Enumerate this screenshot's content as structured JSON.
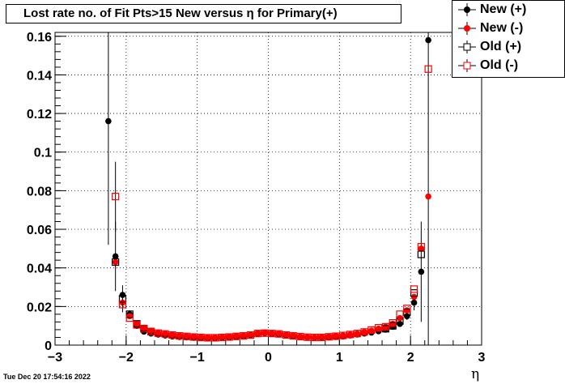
{
  "title": "Lost rate no. of Fit Pts>15 New versus  η for Primary(+)",
  "footer": "Tue Dec 20 17:54:16 2022",
  "chart_data": {
    "type": "scatter",
    "xlabel": "η",
    "ylabel": "",
    "xlim": [
      -3,
      3
    ],
    "ylim": [
      0,
      0.162
    ],
    "grid": true,
    "legend_placement": "top-right",
    "x_ticks": [
      "−3",
      "−2",
      "−1",
      "0",
      "1",
      "2",
      "3"
    ],
    "y_ticks": [
      "0",
      "0.02",
      "0.04",
      "0.06",
      "0.08",
      "0.1",
      "0.12",
      "0.14",
      "0.16"
    ],
    "series": [
      {
        "name": "New (+)",
        "marker": "filled-circle",
        "color": "#000000",
        "points": [
          {
            "x": -2.25,
            "y": 0.116,
            "err": 0.064
          },
          {
            "x": -2.15,
            "y": 0.046,
            "err": 0.018
          },
          {
            "x": -2.05,
            "y": 0.026,
            "err": 0.005
          },
          {
            "x": -1.95,
            "y": 0.016,
            "err": 0.002
          },
          {
            "x": -1.85,
            "y": 0.01
          },
          {
            "x": -1.75,
            "y": 0.007
          },
          {
            "x": -1.65,
            "y": 0.006
          },
          {
            "x": -1.55,
            "y": 0.0055
          },
          {
            "x": -1.45,
            "y": 0.005
          },
          {
            "x": -1.35,
            "y": 0.0045
          },
          {
            "x": -1.25,
            "y": 0.0042
          },
          {
            "x": -1.15,
            "y": 0.004
          },
          {
            "x": -1.05,
            "y": 0.0038
          },
          {
            "x": -0.95,
            "y": 0.0036
          },
          {
            "x": -0.85,
            "y": 0.0035
          },
          {
            "x": -0.75,
            "y": 0.0036
          },
          {
            "x": -0.65,
            "y": 0.0038
          },
          {
            "x": -0.55,
            "y": 0.004
          },
          {
            "x": -0.45,
            "y": 0.0042
          },
          {
            "x": -0.35,
            "y": 0.0045
          },
          {
            "x": -0.25,
            "y": 0.005
          },
          {
            "x": -0.15,
            "y": 0.0058
          },
          {
            "x": -0.05,
            "y": 0.0062
          },
          {
            "x": 0.05,
            "y": 0.0058
          },
          {
            "x": 0.15,
            "y": 0.0055
          },
          {
            "x": 0.25,
            "y": 0.005
          },
          {
            "x": 0.35,
            "y": 0.0045
          },
          {
            "x": 0.45,
            "y": 0.0042
          },
          {
            "x": 0.55,
            "y": 0.004
          },
          {
            "x": 0.65,
            "y": 0.0038
          },
          {
            "x": 0.75,
            "y": 0.0038
          },
          {
            "x": 0.85,
            "y": 0.004
          },
          {
            "x": 0.95,
            "y": 0.0042
          },
          {
            "x": 1.05,
            "y": 0.0045
          },
          {
            "x": 1.15,
            "y": 0.005
          },
          {
            "x": 1.25,
            "y": 0.0055
          },
          {
            "x": 1.35,
            "y": 0.006
          },
          {
            "x": 1.45,
            "y": 0.0065
          },
          {
            "x": 1.55,
            "y": 0.0072
          },
          {
            "x": 1.65,
            "y": 0.008
          },
          {
            "x": 1.75,
            "y": 0.0095
          },
          {
            "x": 1.85,
            "y": 0.011
          },
          {
            "x": 1.95,
            "y": 0.015,
            "err": 0.002
          },
          {
            "x": 2.05,
            "y": 0.022,
            "err": 0.004
          },
          {
            "x": 2.15,
            "y": 0.038,
            "err": 0.026
          },
          {
            "x": 2.25,
            "y": 0.158,
            "err": 0.158
          }
        ]
      },
      {
        "name": "New (-)",
        "marker": "filled-circle",
        "color": "#ff0000",
        "points": [
          {
            "x": -2.15,
            "y": 0.043
          },
          {
            "x": -2.05,
            "y": 0.022
          },
          {
            "x": -1.95,
            "y": 0.015
          },
          {
            "x": -1.85,
            "y": 0.011
          },
          {
            "x": -1.75,
            "y": 0.009
          },
          {
            "x": -1.65,
            "y": 0.0075
          },
          {
            "x": -1.55,
            "y": 0.0065
          },
          {
            "x": -1.45,
            "y": 0.006
          },
          {
            "x": -1.35,
            "y": 0.0055
          },
          {
            "x": -1.25,
            "y": 0.005
          },
          {
            "x": -1.15,
            "y": 0.0048
          },
          {
            "x": -1.05,
            "y": 0.0045
          },
          {
            "x": -0.95,
            "y": 0.0042
          },
          {
            "x": -0.85,
            "y": 0.004
          },
          {
            "x": -0.75,
            "y": 0.004
          },
          {
            "x": -0.65,
            "y": 0.0042
          },
          {
            "x": -0.55,
            "y": 0.0045
          },
          {
            "x": -0.45,
            "y": 0.0048
          },
          {
            "x": -0.35,
            "y": 0.005
          },
          {
            "x": -0.25,
            "y": 0.0055
          },
          {
            "x": -0.15,
            "y": 0.0062
          },
          {
            "x": -0.05,
            "y": 0.0065
          },
          {
            "x": 0.05,
            "y": 0.0062
          },
          {
            "x": 0.15,
            "y": 0.006
          },
          {
            "x": 0.25,
            "y": 0.0055
          },
          {
            "x": 0.35,
            "y": 0.005
          },
          {
            "x": 0.45,
            "y": 0.0045
          },
          {
            "x": 0.55,
            "y": 0.0042
          },
          {
            "x": 0.65,
            "y": 0.004
          },
          {
            "x": 0.75,
            "y": 0.0042
          },
          {
            "x": 0.85,
            "y": 0.0045
          },
          {
            "x": 0.95,
            "y": 0.0048
          },
          {
            "x": 1.05,
            "y": 0.005
          },
          {
            "x": 1.15,
            "y": 0.0055
          },
          {
            "x": 1.25,
            "y": 0.006
          },
          {
            "x": 1.35,
            "y": 0.0068
          },
          {
            "x": 1.45,
            "y": 0.0075
          },
          {
            "x": 1.55,
            "y": 0.0085
          },
          {
            "x": 1.65,
            "y": 0.0095
          },
          {
            "x": 1.75,
            "y": 0.011
          },
          {
            "x": 1.85,
            "y": 0.014
          },
          {
            "x": 1.95,
            "y": 0.018
          },
          {
            "x": 2.05,
            "y": 0.025
          },
          {
            "x": 2.15,
            "y": 0.05
          },
          {
            "x": 2.25,
            "y": 0.077
          }
        ]
      },
      {
        "name": "Old (+)",
        "marker": "open-square",
        "color": "#000000",
        "points": [
          {
            "x": -2.15,
            "y": 0.043
          },
          {
            "x": -2.05,
            "y": 0.024
          },
          {
            "x": -1.95,
            "y": 0.016
          },
          {
            "x": -1.85,
            "y": 0.011
          },
          {
            "x": -1.75,
            "y": 0.0085
          },
          {
            "x": -1.65,
            "y": 0.007
          },
          {
            "x": 1.65,
            "y": 0.0085
          },
          {
            "x": 1.75,
            "y": 0.01
          },
          {
            "x": 1.85,
            "y": 0.0125
          },
          {
            "x": 1.95,
            "y": 0.017
          },
          {
            "x": 2.05,
            "y": 0.027
          },
          {
            "x": 2.15,
            "y": 0.047
          }
        ]
      },
      {
        "name": "Old (-)",
        "marker": "open-square",
        "color": "#ff0000",
        "points": [
          {
            "x": -2.15,
            "y": 0.077,
            "err": 0.018
          },
          {
            "x": -2.05,
            "y": 0.021,
            "err": 0.004
          },
          {
            "x": -1.95,
            "y": 0.014
          },
          {
            "x": -1.85,
            "y": 0.0105
          },
          {
            "x": -1.75,
            "y": 0.0085
          },
          {
            "x": -1.65,
            "y": 0.007
          },
          {
            "x": -1.55,
            "y": 0.0062
          },
          {
            "x": -1.45,
            "y": 0.0058
          },
          {
            "x": -1.35,
            "y": 0.0052
          },
          {
            "x": -1.25,
            "y": 0.0048
          },
          {
            "x": -1.15,
            "y": 0.0045
          },
          {
            "x": -1.05,
            "y": 0.0042
          },
          {
            "x": -0.95,
            "y": 0.004
          },
          {
            "x": -0.85,
            "y": 0.0038
          },
          {
            "x": -0.75,
            "y": 0.0038
          },
          {
            "x": -0.65,
            "y": 0.004
          },
          {
            "x": -0.55,
            "y": 0.0042
          },
          {
            "x": -0.45,
            "y": 0.0045
          },
          {
            "x": -0.35,
            "y": 0.0048
          },
          {
            "x": -0.25,
            "y": 0.0052
          },
          {
            "x": -0.15,
            "y": 0.006
          },
          {
            "x": -0.05,
            "y": 0.0062
          },
          {
            "x": 0.05,
            "y": 0.006
          },
          {
            "x": 0.15,
            "y": 0.0058
          },
          {
            "x": 0.25,
            "y": 0.0052
          },
          {
            "x": 0.35,
            "y": 0.0048
          },
          {
            "x": 0.45,
            "y": 0.0044
          },
          {
            "x": 0.55,
            "y": 0.0041
          },
          {
            "x": 0.65,
            "y": 0.004
          },
          {
            "x": 0.75,
            "y": 0.004
          },
          {
            "x": 0.85,
            "y": 0.0043
          },
          {
            "x": 0.95,
            "y": 0.0046
          },
          {
            "x": 1.05,
            "y": 0.005
          },
          {
            "x": 1.15,
            "y": 0.0055
          },
          {
            "x": 1.25,
            "y": 0.006
          },
          {
            "x": 1.35,
            "y": 0.0068
          },
          {
            "x": 1.45,
            "y": 0.0078
          },
          {
            "x": 1.55,
            "y": 0.009
          },
          {
            "x": 1.65,
            "y": 0.0095
          },
          {
            "x": 1.75,
            "y": 0.0115
          },
          {
            "x": 1.85,
            "y": 0.016
          },
          {
            "x": 1.95,
            "y": 0.019
          },
          {
            "x": 2.05,
            "y": 0.029
          },
          {
            "x": 2.15,
            "y": 0.051
          },
          {
            "x": 2.25,
            "y": 0.143
          }
        ]
      }
    ]
  }
}
